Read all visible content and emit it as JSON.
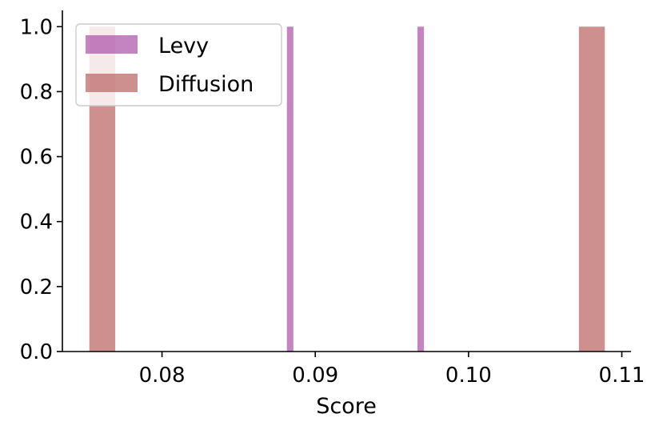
{
  "chart_data": {
    "type": "bar",
    "title": "",
    "xlabel": "Score",
    "ylabel": "",
    "xlim": [
      0.0735,
      0.1106
    ],
    "ylim": [
      0,
      1.05
    ],
    "xticks": [
      {
        "value": 0.08,
        "label": "0.08"
      },
      {
        "value": 0.09,
        "label": "0.09"
      },
      {
        "value": 0.1,
        "label": "0.10"
      },
      {
        "value": 0.11,
        "label": "0.11"
      }
    ],
    "yticks": [
      {
        "value": 0.0,
        "label": "0.0"
      },
      {
        "value": 0.2,
        "label": "0.2"
      },
      {
        "value": 0.4,
        "label": "0.4"
      },
      {
        "value": 0.6,
        "label": "0.6"
      },
      {
        "value": 0.8,
        "label": "0.8"
      },
      {
        "value": 1.0,
        "label": "1.0"
      }
    ],
    "grid": false,
    "legend_position": "top-left",
    "series": [
      {
        "name": "Levy",
        "color": "#b460b0",
        "alpha": 0.78,
        "bins": [
          {
            "x0": 0.08815,
            "x1": 0.08857,
            "count": 1
          },
          {
            "x0": 0.09667,
            "x1": 0.09709,
            "count": 1
          }
        ]
      },
      {
        "name": "Diffusion",
        "color": "#c07070",
        "alpha": 0.78,
        "bins": [
          {
            "x0": 0.07526,
            "x1": 0.07695,
            "count": 1
          },
          {
            "x0": 0.1072,
            "x1": 0.10889,
            "count": 1
          }
        ]
      }
    ]
  }
}
